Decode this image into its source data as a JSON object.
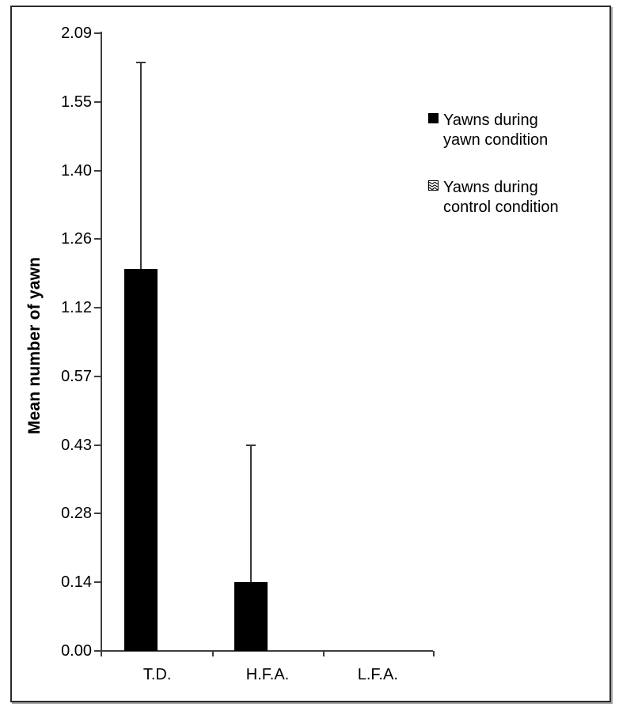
{
  "chart_data": {
    "type": "bar",
    "title": "",
    "ylabel": "Mean number of yawn",
    "xlabel": "",
    "categories": [
      "T.D.",
      "H.F.A.",
      "L.F.A."
    ],
    "series": [
      {
        "name": "Yawns during yawn condition",
        "swatch": "solid-black-square",
        "values": [
          1.2,
          0.14,
          0
        ],
        "error_upper": [
          1.86,
          0.43,
          0
        ]
      },
      {
        "name": "Yawns during control condition",
        "swatch": "wave-pattern-square",
        "values": [
          0,
          0,
          0
        ],
        "error_upper": [
          0,
          0,
          0
        ]
      }
    ],
    "y_tick_labels": [
      "0.00",
      "0.14",
      "0.28",
      "0.43",
      "0.57",
      "1.12",
      "1.26",
      "1.40",
      "1.55",
      "2.09"
    ],
    "y_tick_values": [
      0,
      0.14,
      0.28,
      0.43,
      0.57,
      1.12,
      1.26,
      1.4,
      1.55,
      2.09
    ],
    "grid": false,
    "legend": {
      "position": "right",
      "entries": [
        {
          "swatch": "solid-black-square",
          "line1": "Yawns during",
          "line2": "yawn condition"
        },
        {
          "swatch": "wave-pattern-square",
          "line1": "Yawns during",
          "line2": "control condition"
        }
      ]
    },
    "colors": {
      "bar_fill": "#000000",
      "axis_line": "#3f3f3f",
      "frame_border": "#2b2b2b",
      "text": "#000000",
      "background": "#ffffff"
    }
  }
}
